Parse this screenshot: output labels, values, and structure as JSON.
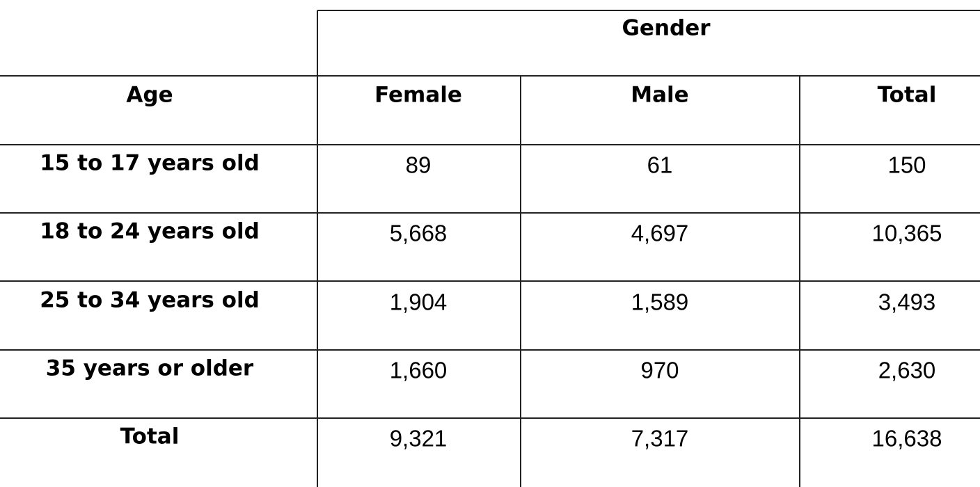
{
  "header": {
    "group": "Gender",
    "columns": [
      "Age",
      "Female",
      "Male",
      "Total"
    ]
  },
  "table": {
    "rows": [
      [
        "15 to 17 years old",
        "89",
        "61",
        "150"
      ],
      [
        "18 to 24 years old",
        "5,668",
        "4,697",
        "10,365"
      ],
      [
        "25 to 34 years old",
        "1,904",
        "1,589",
        "3,493"
      ],
      [
        "35 years or older",
        "1,660",
        "970",
        "2,630"
      ],
      [
        "Total",
        "9,321",
        "7,317",
        "16,638"
      ]
    ]
  }
}
